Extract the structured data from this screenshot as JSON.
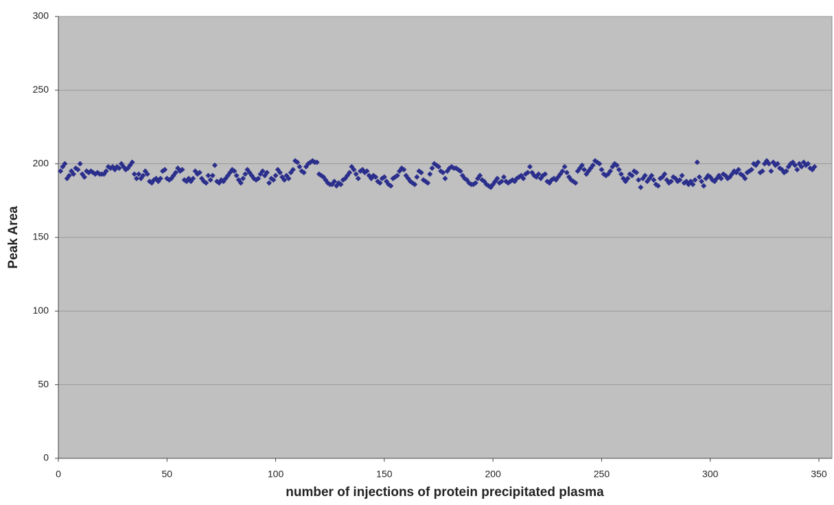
{
  "chart_data": {
    "type": "scatter",
    "xlabel": "number of injections of protein precipitated plasma",
    "ylabel": "Peak Area",
    "xlim": [
      0,
      356
    ],
    "ylim": [
      0,
      300
    ],
    "xticks": [
      0,
      50,
      100,
      150,
      200,
      250,
      300,
      350
    ],
    "yticks": [
      0,
      50,
      100,
      150,
      200,
      250,
      300
    ],
    "grid": true,
    "series": [
      {
        "color": "#2b2f8c",
        "x": [
          1,
          2,
          3,
          4,
          5,
          6,
          7,
          8,
          9,
          10,
          11,
          12,
          13,
          14,
          15,
          16,
          17,
          18,
          19,
          20,
          21,
          22,
          23,
          24,
          25,
          26,
          27,
          28,
          29,
          30,
          31,
          32,
          33,
          34,
          35,
          36,
          37,
          38,
          39,
          40,
          41,
          42,
          43,
          44,
          45,
          46,
          47,
          48,
          49,
          50,
          51,
          52,
          53,
          54,
          55,
          56,
          57,
          58,
          59,
          60,
          61,
          62,
          63,
          64,
          65,
          66,
          67,
          68,
          69,
          70,
          71,
          72,
          73,
          74,
          75,
          76,
          77,
          78,
          79,
          80,
          81,
          82,
          83,
          84,
          85,
          86,
          87,
          88,
          89,
          90,
          91,
          92,
          93,
          94,
          95,
          96,
          97,
          98,
          99,
          100,
          101,
          102,
          103,
          104,
          105,
          106,
          107,
          108,
          109,
          110,
          111,
          112,
          113,
          114,
          115,
          116,
          117,
          118,
          119,
          120,
          121,
          122,
          123,
          124,
          125,
          126,
          127,
          128,
          129,
          130,
          131,
          132,
          133,
          134,
          135,
          136,
          137,
          138,
          139,
          140,
          141,
          142,
          143,
          144,
          145,
          146,
          147,
          148,
          149,
          150,
          151,
          152,
          153,
          154,
          155,
          156,
          157,
          158,
          159,
          160,
          161,
          162,
          163,
          164,
          165,
          166,
          167,
          168,
          169,
          170,
          171,
          172,
          173,
          174,
          175,
          176,
          177,
          178,
          179,
          180,
          181,
          182,
          183,
          184,
          185,
          186,
          187,
          188,
          189,
          190,
          191,
          192,
          193,
          194,
          195,
          196,
          197,
          198,
          199,
          200,
          201,
          202,
          203,
          204,
          205,
          206,
          207,
          208,
          209,
          210,
          211,
          212,
          213,
          214,
          215,
          216,
          217,
          218,
          219,
          220,
          221,
          222,
          223,
          224,
          225,
          226,
          227,
          228,
          229,
          230,
          231,
          232,
          233,
          234,
          235,
          236,
          237,
          238,
          239,
          240,
          241,
          242,
          243,
          244,
          245,
          246,
          247,
          248,
          249,
          250,
          251,
          252,
          253,
          254,
          255,
          256,
          257,
          258,
          259,
          260,
          261,
          262,
          263,
          264,
          265,
          266,
          267,
          268,
          269,
          270,
          271,
          272,
          273,
          274,
          275,
          276,
          277,
          278,
          279,
          280,
          281,
          282,
          283,
          284,
          285,
          286,
          287,
          288,
          289,
          290,
          291,
          292,
          293,
          294,
          295,
          296,
          297,
          298,
          299,
          300,
          301,
          302,
          303,
          304,
          305,
          306,
          307,
          308,
          309,
          310,
          311,
          312,
          313,
          314,
          315,
          316,
          317,
          318,
          319,
          320,
          321,
          322,
          323,
          324,
          325,
          326,
          327,
          328,
          329,
          330,
          331,
          332,
          333,
          334,
          335,
          336,
          337,
          338,
          339,
          340,
          341,
          342,
          343,
          344,
          345,
          346,
          347,
          348
        ],
        "values": [
          195,
          198,
          200,
          190,
          192,
          195,
          193,
          197,
          196,
          200,
          193,
          191,
          195,
          194,
          195,
          194,
          193,
          194,
          193,
          193,
          193,
          195,
          198,
          197,
          198,
          196,
          198,
          197,
          200,
          198,
          196,
          197,
          199,
          201,
          193,
          190,
          193,
          190,
          192,
          195,
          193,
          188,
          187,
          189,
          190,
          188,
          190,
          195,
          196,
          190,
          189,
          190,
          192,
          194,
          197,
          195,
          196,
          189,
          188,
          190,
          188,
          190,
          195,
          193,
          194,
          190,
          188,
          187,
          192,
          189,
          192,
          199,
          188,
          187,
          189,
          188,
          190,
          192,
          194,
          196,
          195,
          192,
          189,
          187,
          190,
          193,
          196,
          194,
          192,
          190,
          189,
          190,
          193,
          195,
          192,
          194,
          187,
          190,
          189,
          192,
          196,
          194,
          191,
          189,
          192,
          190,
          194,
          196,
          202,
          201,
          198,
          195,
          194,
          198,
          200,
          201,
          202,
          201,
          201,
          193,
          192,
          191,
          189,
          187,
          186,
          186,
          188,
          185,
          187,
          186,
          189,
          190,
          192,
          194,
          198,
          196,
          193,
          190,
          195,
          196,
          194,
          195,
          192,
          190,
          192,
          191,
          188,
          187,
          190,
          191,
          188,
          186,
          185,
          190,
          191,
          192,
          195,
          197,
          196,
          192,
          190,
          188,
          187,
          186,
          191,
          195,
          194,
          189,
          188,
          187,
          193,
          197,
          200,
          199,
          198,
          195,
          194,
          190,
          195,
          197,
          198,
          197,
          197,
          196,
          195,
          192,
          190,
          189,
          187,
          186,
          186,
          187,
          190,
          192,
          189,
          188,
          186,
          185,
          184,
          186,
          188,
          190,
          187,
          188,
          191,
          188,
          187,
          188,
          189,
          188,
          190,
          191,
          192,
          190,
          193,
          194,
          198,
          194,
          192,
          191,
          193,
          190,
          192,
          193,
          188,
          187,
          189,
          190,
          189,
          191,
          193,
          195,
          198,
          194,
          191,
          189,
          188,
          187,
          195,
          197,
          199,
          196,
          193,
          195,
          197,
          199,
          202,
          201,
          200,
          196,
          193,
          192,
          193,
          195,
          198,
          200,
          199,
          196,
          193,
          190,
          188,
          190,
          193,
          192,
          195,
          194,
          189,
          184,
          190,
          192,
          188,
          190,
          192,
          189,
          186,
          185,
          190,
          191,
          193,
          189,
          187,
          188,
          191,
          190,
          188,
          189,
          192,
          187,
          188,
          186,
          188,
          186,
          189,
          201,
          191,
          188,
          185,
          190,
          192,
          191,
          189,
          188,
          190,
          192,
          190,
          193,
          192,
          190,
          191,
          193,
          195,
          194,
          196,
          193,
          192,
          190,
          194,
          195,
          196,
          200,
          199,
          201,
          194,
          195,
          200,
          202,
          200,
          195,
          201,
          199,
          200,
          197,
          196,
          194,
          195,
          198,
          200,
          201,
          199,
          196,
          200,
          198,
          201,
          199,
          200,
          197,
          196,
          198
        ]
      }
    ]
  }
}
